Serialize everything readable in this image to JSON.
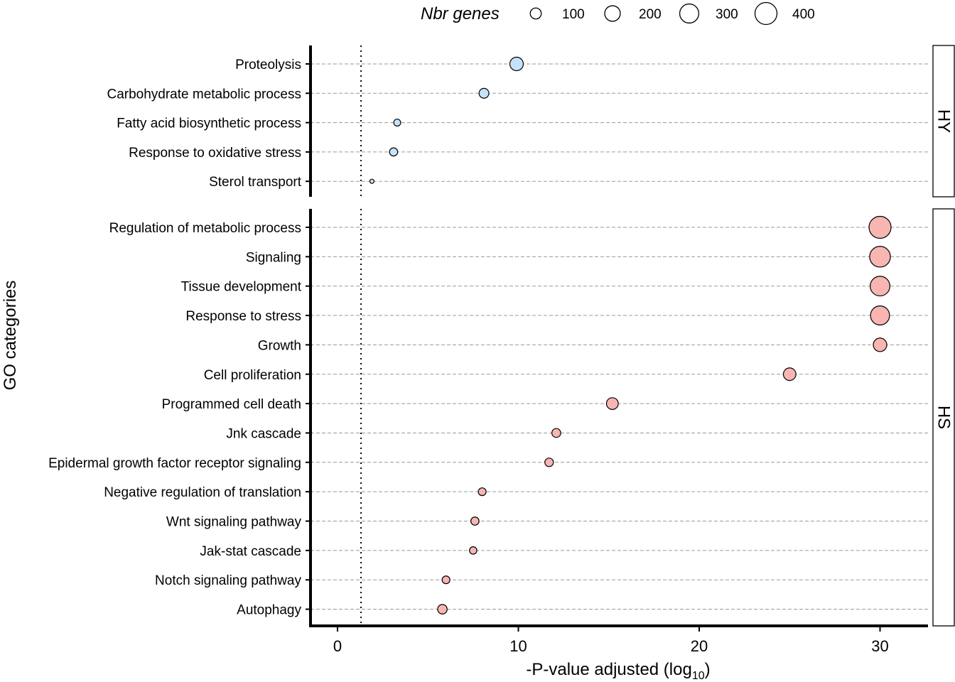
{
  "chart_data": {
    "type": "scatter",
    "xlabel_main": "-P-value adjusted (log",
    "xlabel_sub": "10",
    "xlabel_close": ")",
    "ylabel": "GO categories",
    "xlim": [
      -1.5,
      32.5
    ],
    "x_ticks": [
      0,
      10,
      20,
      30
    ],
    "size_legend": {
      "title": "Nbr genes",
      "values": [
        100,
        200,
        300,
        400
      ],
      "placement": "top"
    },
    "threshold": 1.3,
    "panels": [
      {
        "name": "HY",
        "color": "#c6e2fa",
        "points": [
          {
            "category": "Proteolysis",
            "x": 9.9,
            "genes": 150
          },
          {
            "category": "Carbohydrate metabolic process",
            "x": 8.1,
            "genes": 80
          },
          {
            "category": "Fatty acid biosynthetic process",
            "x": 3.3,
            "genes": 40
          },
          {
            "category": "Response to oxidative stress",
            "x": 3.1,
            "genes": 55
          },
          {
            "category": "Sterol transport",
            "x": 1.9,
            "genes": 15
          }
        ]
      },
      {
        "name": "HS",
        "color": "#f8b5b1",
        "points": [
          {
            "category": "Regulation of metabolic process",
            "x": 30,
            "genes": 400
          },
          {
            "category": "Signaling",
            "x": 30,
            "genes": 355
          },
          {
            "category": "Tissue development",
            "x": 30,
            "genes": 320
          },
          {
            "category": "Response to stress",
            "x": 30,
            "genes": 300
          },
          {
            "category": "Growth",
            "x": 30,
            "genes": 150
          },
          {
            "category": "Cell proliferation",
            "x": 25,
            "genes": 130
          },
          {
            "category": "Programmed cell death",
            "x": 15.2,
            "genes": 115
          },
          {
            "category": "Jnk cascade",
            "x": 12.1,
            "genes": 65
          },
          {
            "category": "Epidermal growth factor receptor signaling",
            "x": 11.7,
            "genes": 60
          },
          {
            "category": "Negative regulation of translation",
            "x": 8.0,
            "genes": 50
          },
          {
            "category": "Wnt signaling pathway",
            "x": 7.6,
            "genes": 55
          },
          {
            "category": "Jak-stat cascade",
            "x": 7.5,
            "genes": 45
          },
          {
            "category": "Notch signaling pathway",
            "x": 6.0,
            "genes": 50
          },
          {
            "category": "Autophagy",
            "x": 5.8,
            "genes": 75
          }
        ]
      }
    ]
  }
}
